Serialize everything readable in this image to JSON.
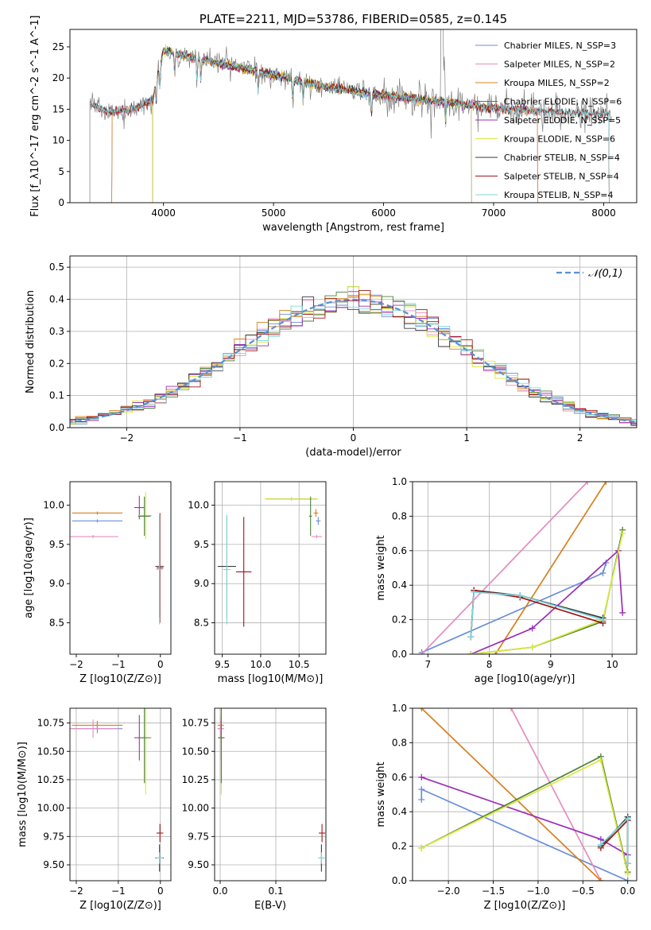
{
  "colors": {
    "Chabrier MILES": "#6a8fd8",
    "Salpeter MILES": "#e68cc0",
    "Kroupa MILES": "#d7801e",
    "Chabrier ELODIE": "#4f7f3c",
    "Salpeter ELODIE": "#9b2fb5",
    "Kroupa ELODIE": "#d9e83e",
    "Chabrier STELIB": "#3a3a3a",
    "Salpeter STELIB": "#a31515",
    "Kroupa STELIB": "#7fd6dc"
  },
  "series_names": [
    "Chabrier MILES",
    "Salpeter MILES",
    "Kroupa MILES",
    "Chabrier ELODIE",
    "Salpeter ELODIE",
    "Kroupa ELODIE",
    "Chabrier STELIB",
    "Salpeter STELIB",
    "Kroupa STELIB"
  ],
  "chart_data": [
    {
      "id": "spectrum",
      "type": "line",
      "title": "PLATE=2211, MJD=53786, FIBERID=0585, z=0.145",
      "xlabel": "wavelength [Angstrom, rest frame]",
      "ylabel": "Flux [f_λ10^-17 erg cm^-2 s^-1 A^-1]",
      "xlim": [
        3150,
        8300
      ],
      "ylim": [
        0,
        27.8
      ],
      "xticks": [
        4000,
        5000,
        6000,
        7000,
        8000
      ],
      "yticks": [
        0,
        5,
        10,
        15,
        20,
        25
      ],
      "grid": false,
      "legend_position": "top-right",
      "data_series": {
        "name": "data",
        "color": "#808080",
        "wavelength_range": [
          3330,
          8070
        ]
      },
      "series": [
        {
          "name": "Chabrier MILES",
          "legend": "Chabrier MILES, N_SSP=3",
          "wavelength_range": [
            3530,
            7400
          ]
        },
        {
          "name": "Salpeter MILES",
          "legend": "Salpeter MILES, N_SSP=2",
          "wavelength_range": [
            3530,
            7400
          ]
        },
        {
          "name": "Kroupa MILES",
          "legend": "Kroupa MILES, N_SSP=2",
          "wavelength_range": [
            3530,
            7400
          ]
        },
        {
          "name": "Chabrier ELODIE",
          "legend": "Chabrier ELODIE, N_SSP=6",
          "wavelength_range": [
            3900,
            6800
          ]
        },
        {
          "name": "Salpeter ELODIE",
          "legend": "Salpeter ELODIE, N_SSP=5",
          "wavelength_range": [
            3900,
            6800
          ]
        },
        {
          "name": "Kroupa ELODIE",
          "legend": "Kroupa ELODIE, N_SSP=6",
          "wavelength_range": [
            3900,
            6800
          ]
        },
        {
          "name": "Chabrier STELIB",
          "legend": "Chabrier STELIB, N_SSP=4",
          "wavelength_range": [
            3330,
            8050
          ]
        },
        {
          "name": "Salpeter STELIB",
          "legend": "Salpeter STELIB, N_SSP=4",
          "wavelength_range": [
            3330,
            8050
          ]
        },
        {
          "name": "Kroupa STELIB",
          "legend": "Kroupa STELIB, N_SSP=4",
          "wavelength_range": [
            3330,
            8050
          ]
        }
      ],
      "continuum_shape": [
        [
          3330,
          15.8
        ],
        [
          3500,
          14.6
        ],
        [
          3700,
          14.8
        ],
        [
          3900,
          16.5
        ],
        [
          4000,
          24.5
        ],
        [
          4200,
          23.5
        ],
        [
          4600,
          22
        ],
        [
          5000,
          20.5
        ],
        [
          5500,
          18.5
        ],
        [
          6000,
          17.2
        ],
        [
          6500,
          16.3
        ],
        [
          7000,
          15.2
        ],
        [
          7500,
          14.6
        ],
        [
          8050,
          14.2
        ]
      ]
    },
    {
      "id": "residuals",
      "type": "step",
      "xlabel": "(data-model)/error",
      "ylabel": "Normed distribution",
      "xlim": [
        -2.5,
        2.5
      ],
      "ylim": [
        0,
        0.535
      ],
      "xticks": [
        -2,
        -1,
        0,
        1,
        2
      ],
      "yticks": [
        0.0,
        0.1,
        0.2,
        0.3,
        0.4,
        0.5
      ],
      "grid": true,
      "legend_position": "top-right",
      "reference": {
        "name": "𝒩(0,1)",
        "mean": 0,
        "sigma": 1,
        "color": "#5b8fd4"
      }
    },
    {
      "id": "age-vs-z",
      "type": "scatter",
      "xlabel": "Z [log10(Z/Z⊙)]",
      "ylabel": "age [log10(age/yr)]",
      "xlim": [
        -2.15,
        0.25
      ],
      "ylim": [
        8.1,
        10.3
      ],
      "xticks": [
        -2,
        -1,
        0
      ],
      "yticks": [
        8.5,
        9.0,
        9.5,
        10.0
      ],
      "grid": false,
      "points": [
        {
          "series": "Chabrier MILES",
          "x": -1.5,
          "xerr": 0.6,
          "y": 9.8,
          "yerr": 0.02
        },
        {
          "series": "Kroupa MILES",
          "x": -1.5,
          "xerr": 0.6,
          "y": 9.9,
          "yerr": 0.02
        },
        {
          "series": "Salpeter MILES",
          "x": -1.6,
          "xerr": 0.6,
          "y": 9.6,
          "yerr": 0.02
        },
        {
          "series": "Salpeter ELODIE",
          "x": -0.5,
          "xerr": 0.12,
          "y": 9.97,
          "yerr": 0.15
        },
        {
          "series": "Kroupa ELODIE",
          "x": -0.35,
          "xerr": 0.15,
          "y": 9.87,
          "yerr": 0.3
        },
        {
          "series": "Chabrier ELODIE",
          "x": -0.38,
          "xerr": 0.15,
          "y": 9.86,
          "yerr": 0.25
        },
        {
          "series": "Chabrier STELIB",
          "x": -0.02,
          "xerr": 0.1,
          "y": 9.22,
          "yerr": 0.65
        },
        {
          "series": "Salpeter STELIB",
          "x": -0.01,
          "xerr": 0.08,
          "y": 9.2,
          "yerr": 0.7
        },
        {
          "series": "Kroupa STELIB",
          "x": -0.02,
          "xerr": 0.08,
          "y": 9.18,
          "yerr": 0.7
        }
      ]
    },
    {
      "id": "age-vs-mass",
      "type": "scatter",
      "xlabel": "mass [log10(M/M⊙)]",
      "ylabel": "",
      "xlim": [
        9.4,
        10.85
      ],
      "ylim": [
        8.1,
        10.3
      ],
      "xticks": [
        9.5,
        10.0,
        10.5
      ],
      "yticks": [
        8.5,
        9.0,
        9.5,
        10.0
      ],
      "grid": true,
      "points": [
        {
          "series": "Chabrier MILES",
          "x": 10.75,
          "xerr": 0.03,
          "y": 9.8,
          "yerr": 0.05
        },
        {
          "series": "Kroupa MILES",
          "x": 10.72,
          "xerr": 0.03,
          "y": 9.9,
          "yerr": 0.05
        },
        {
          "series": "Salpeter MILES",
          "x": 10.73,
          "xerr": 0.07,
          "y": 9.6,
          "yerr": 0.02
        },
        {
          "series": "Salpeter ELODIE",
          "x": 10.4,
          "xerr": 0.33,
          "y": 10.08,
          "yerr": 0.02
        },
        {
          "series": "Kroupa ELODIE",
          "x": 10.4,
          "xerr": 0.35,
          "y": 10.08,
          "yerr": 0.02
        },
        {
          "series": "Chabrier ELODIE",
          "x": 10.65,
          "xerr": 0.02,
          "y": 9.86,
          "yerr": 0.25
        },
        {
          "series": "Chabrier STELIB",
          "x": 9.56,
          "xerr": 0.12,
          "y": 9.22,
          "yerr": 0.65
        },
        {
          "series": "Salpeter STELIB",
          "x": 9.78,
          "xerr": 0.1,
          "y": 9.15,
          "yerr": 0.7
        },
        {
          "series": "Kroupa STELIB",
          "x": 9.56,
          "xerr": 0.05,
          "y": 9.18,
          "yerr": 0.7
        }
      ]
    },
    {
      "id": "mass-weight-vs-age",
      "type": "line",
      "xlabel": "age [log10(age/yr)]",
      "ylabel": "mass weight",
      "xlim": [
        6.75,
        10.4
      ],
      "ylim": [
        0,
        1.0
      ],
      "xticks": [
        7,
        8,
        9,
        10
      ],
      "yticks": [
        0.0,
        0.2,
        0.4,
        0.6,
        0.8,
        1.0
      ],
      "grid": true,
      "series": [
        {
          "name": "Chabrier MILES",
          "points": [
            [
              6.9,
              0.01
            ],
            [
              9.85,
              0.47
            ],
            [
              9.9,
              0.53
            ]
          ]
        },
        {
          "name": "Salpeter MILES",
          "points": [
            [
              6.9,
              0.0
            ],
            [
              9.6,
              1.0
            ]
          ]
        },
        {
          "name": "Kroupa MILES",
          "points": [
            [
              8.1,
              0.0
            ],
            [
              9.9,
              1.0
            ]
          ]
        },
        {
          "name": "Chabrier ELODIE",
          "points": [
            [
              7.7,
              0.0
            ],
            [
              8.7,
              0.04
            ],
            [
              9.85,
              0.19
            ],
            [
              10.17,
              0.72
            ]
          ]
        },
        {
          "name": "Salpeter ELODIE",
          "points": [
            [
              7.7,
              0.0
            ],
            [
              8.7,
              0.15
            ],
            [
              10.1,
              0.6
            ],
            [
              10.17,
              0.24
            ]
          ]
        },
        {
          "name": "Kroupa ELODIE",
          "points": [
            [
              7.7,
              0.0
            ],
            [
              8.7,
              0.04
            ],
            [
              9.85,
              0.2
            ],
            [
              10.17,
              0.7
            ]
          ]
        },
        {
          "name": "Chabrier STELIB",
          "points": [
            [
              7.7,
              0.1
            ],
            [
              7.75,
              0.37
            ],
            [
              8.5,
              0.34
            ],
            [
              9.85,
              0.21
            ]
          ]
        },
        {
          "name": "Salpeter STELIB",
          "points": [
            [
              7.7,
              0.1
            ],
            [
              7.75,
              0.37
            ],
            [
              8.5,
              0.33
            ],
            [
              9.85,
              0.18
            ]
          ]
        },
        {
          "name": "Kroupa STELIB",
          "points": [
            [
              7.7,
              0.1
            ],
            [
              7.75,
              0.36
            ],
            [
              8.5,
              0.34
            ],
            [
              9.85,
              0.2
            ]
          ]
        }
      ]
    },
    {
      "id": "mass-vs-z",
      "type": "scatter",
      "xlabel": "Z [log10(Z/Z⊙)]",
      "ylabel": "mass [log10(M/M⊙)]",
      "xlim": [
        -2.15,
        0.25
      ],
      "ylim": [
        9.36,
        10.88
      ],
      "xticks": [
        -2,
        -1,
        0
      ],
      "yticks": [
        9.5,
        9.75,
        10.0,
        10.25,
        10.5,
        10.75
      ],
      "grid": true,
      "points": [
        {
          "series": "Chabrier MILES",
          "x": -1.5,
          "xerr": 0.6,
          "y": 10.7,
          "yerr": 0.04
        },
        {
          "series": "Kroupa MILES",
          "x": -1.5,
          "xerr": 0.6,
          "y": 10.73,
          "yerr": 0.04
        },
        {
          "series": "Salpeter MILES",
          "x": -1.6,
          "xerr": 0.6,
          "y": 10.7,
          "yerr": 0.08
        },
        {
          "series": "Salpeter ELODIE",
          "x": -0.5,
          "xerr": 0.12,
          "y": 10.62,
          "yerr": 0.2
        },
        {
          "series": "Kroupa ELODIE",
          "x": -0.35,
          "xerr": 0.15,
          "y": 10.62,
          "yerr": 0.5
        },
        {
          "series": "Chabrier ELODIE",
          "x": -0.38,
          "xerr": 0.15,
          "y": 10.62,
          "yerr": 0.4
        },
        {
          "series": "Chabrier STELIB",
          "x": -0.02,
          "xerr": 0.1,
          "y": 9.56,
          "yerr": 0.12
        },
        {
          "series": "Salpeter STELIB",
          "x": -0.01,
          "xerr": 0.08,
          "y": 9.78,
          "yerr": 0.08
        },
        {
          "series": "Kroupa STELIB",
          "x": -0.02,
          "xerr": 0.08,
          "y": 9.56,
          "yerr": 0.05
        }
      ]
    },
    {
      "id": "mass-vs-ebv",
      "type": "scatter",
      "xlabel": "E(B-V)",
      "ylabel": "",
      "xlim": [
        -0.01,
        0.19
      ],
      "ylim": [
        9.36,
        10.88
      ],
      "xticks": [
        0.0,
        0.1
      ],
      "yticks": [
        9.5,
        9.75,
        10.0,
        10.25,
        10.5,
        10.75
      ],
      "grid": true,
      "points": [
        {
          "series": "Chabrier MILES",
          "x": 0.001,
          "y": 10.7,
          "yerr": 0.04
        },
        {
          "series": "Kroupa MILES",
          "x": 0.001,
          "y": 10.73,
          "yerr": 0.04
        },
        {
          "series": "Salpeter MILES",
          "x": 0.001,
          "y": 10.7,
          "yerr": 0.08
        },
        {
          "series": "Salpeter ELODIE",
          "x": 0.002,
          "y": 10.62,
          "yerr": 0.2
        },
        {
          "series": "Kroupa ELODIE",
          "x": 0.002,
          "y": 10.62,
          "yerr": 0.5
        },
        {
          "series": "Chabrier ELODIE",
          "x": 0.002,
          "y": 10.62,
          "yerr": 0.4
        },
        {
          "series": "Chabrier STELIB",
          "x": 0.182,
          "y": 9.56,
          "yerr": 0.12
        },
        {
          "series": "Salpeter STELIB",
          "x": 0.183,
          "y": 9.78,
          "yerr": 0.08
        },
        {
          "series": "Kroupa STELIB",
          "x": 0.182,
          "y": 9.56,
          "yerr": 0.05
        }
      ]
    },
    {
      "id": "mass-weight-vs-z",
      "type": "line",
      "xlabel": "Z [log10(Z/Z⊙)]",
      "ylabel": "mass weight",
      "xlim": [
        -2.4,
        0.1
      ],
      "ylim": [
        0,
        1.0
      ],
      "xticks": [
        -2.0,
        -1.5,
        -1.0,
        -0.5,
        0.0
      ],
      "yticks": [
        0.0,
        0.2,
        0.4,
        0.6,
        0.8,
        1.0
      ],
      "grid": true,
      "series": [
        {
          "name": "Chabrier MILES",
          "points": [
            [
              -2.3,
              0.47
            ],
            [
              -2.3,
              0.53
            ],
            [
              0.0,
              0.0
            ]
          ]
        },
        {
          "name": "Salpeter MILES",
          "points": [
            [
              -1.3,
              1.0
            ],
            [
              -0.3,
              0.0
            ]
          ]
        },
        {
          "name": "Kroupa MILES",
          "points": [
            [
              -2.3,
              1.0
            ],
            [
              -0.3,
              0.0
            ]
          ]
        },
        {
          "name": "Chabrier ELODIE",
          "points": [
            [
              -2.3,
              0.19
            ],
            [
              -0.3,
              0.72
            ],
            [
              0.0,
              0.05
            ]
          ]
        },
        {
          "name": "Salpeter ELODIE",
          "points": [
            [
              -2.3,
              0.6
            ],
            [
              -0.3,
              0.24
            ],
            [
              0.0,
              0.15
            ]
          ]
        },
        {
          "name": "Kroupa ELODIE",
          "points": [
            [
              -2.3,
              0.19
            ],
            [
              -0.3,
              0.7
            ],
            [
              0.0,
              0.04
            ]
          ]
        },
        {
          "name": "Chabrier STELIB",
          "points": [
            [
              -0.3,
              0.2
            ],
            [
              0.0,
              0.37
            ],
            [
              0.0,
              0.1
            ]
          ]
        },
        {
          "name": "Salpeter STELIB",
          "points": [
            [
              -0.3,
              0.19
            ],
            [
              0.0,
              0.35
            ],
            [
              0.0,
              0.1
            ]
          ]
        },
        {
          "name": "Kroupa STELIB",
          "points": [
            [
              -0.3,
              0.21
            ],
            [
              0.0,
              0.36
            ],
            [
              0.0,
              0.1
            ]
          ]
        }
      ]
    }
  ]
}
